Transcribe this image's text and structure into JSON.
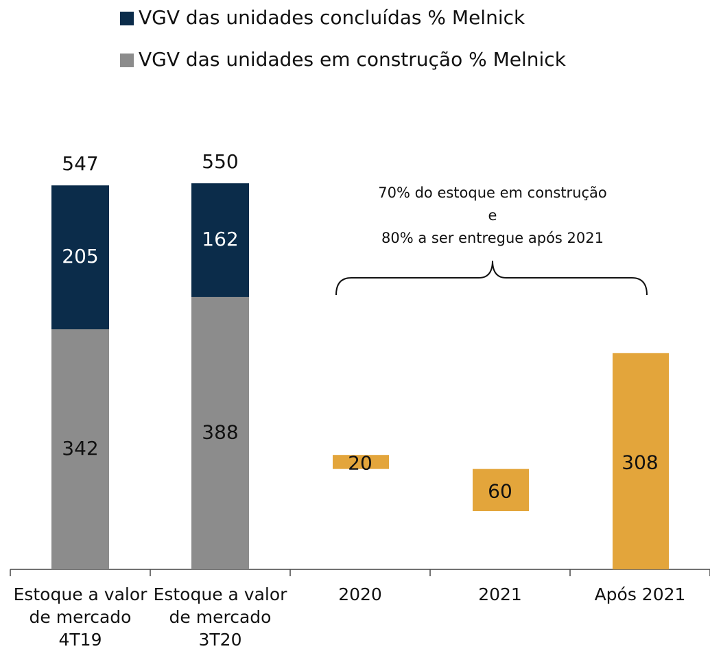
{
  "chart_data": {
    "type": "bar",
    "categories": [
      [
        "Estoque a valor",
        "de mercado",
        "4T19"
      ],
      [
        "Estoque a valor",
        "de mercado",
        "3T20"
      ],
      [
        "2020"
      ],
      [
        "2021"
      ],
      [
        "Após 2021"
      ]
    ],
    "series": [
      {
        "name": "VGV das unidades concluídas % Melnick",
        "color": "#0b2c4a",
        "values": [
          205,
          162,
          null,
          null,
          null
        ]
      },
      {
        "name": "VGV das unidades em construção % Melnick",
        "color": "#8c8c8c",
        "values": [
          342,
          388,
          null,
          null,
          null
        ]
      }
    ],
    "totals": [
      547,
      550,
      null,
      null,
      null
    ],
    "waterfall": {
      "color": "#e3a53b",
      "values": [
        null,
        null,
        20,
        60,
        308
      ],
      "bases": [
        null,
        null,
        143,
        83,
        0
      ]
    },
    "annotation": [
      "70% do estoque em construção",
      "e",
      "80% a ser entregue após 2021"
    ],
    "ylim": [
      0,
      600
    ],
    "legend": "top"
  }
}
